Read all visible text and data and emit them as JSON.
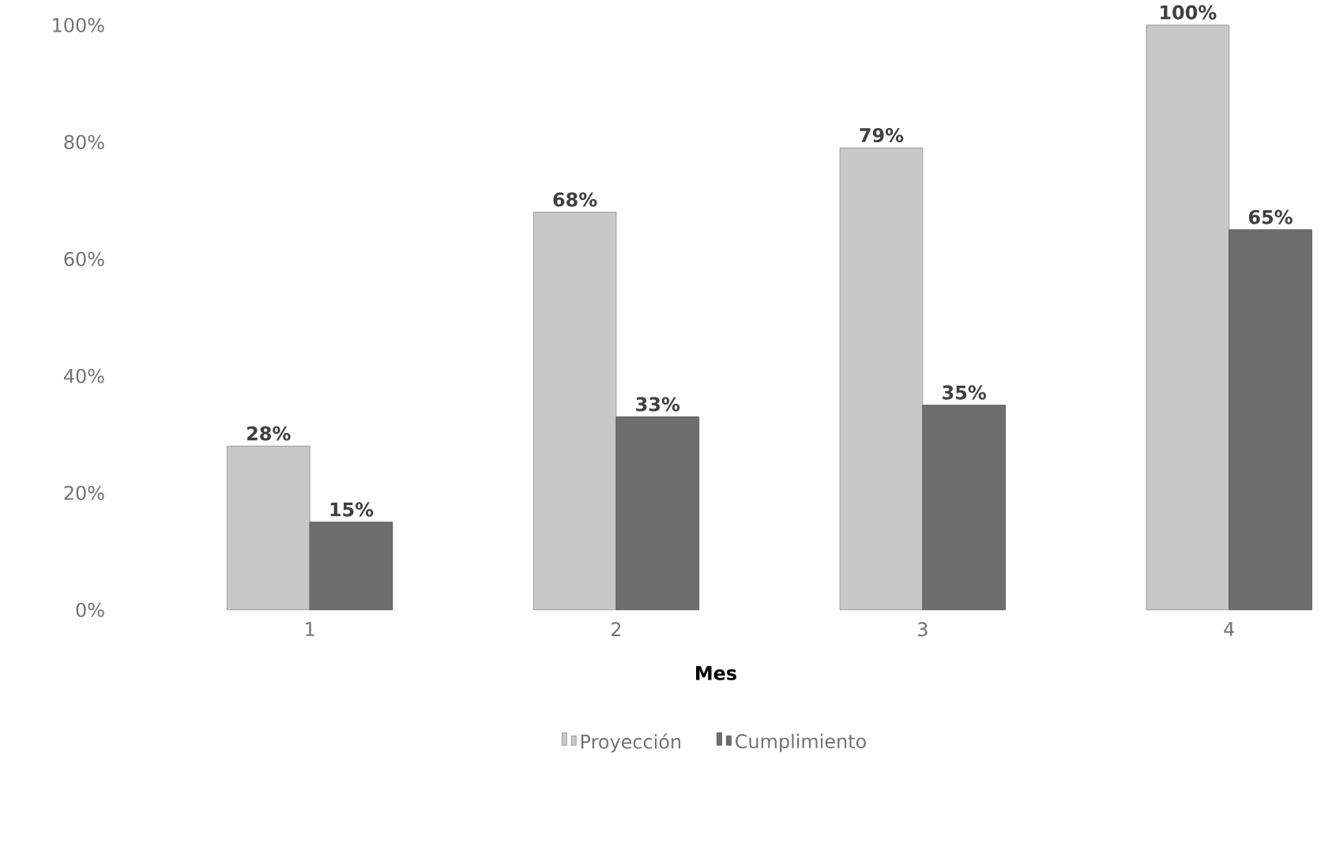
{
  "chart_data": {
    "type": "bar",
    "xlabel": "Mes",
    "categories": [
      "1",
      "2",
      "3",
      "4"
    ],
    "series": [
      {
        "name": "Proyección",
        "color": "#c8c8c8",
        "values": [
          28,
          68,
          79,
          100
        ],
        "value_labels": [
          "28%",
          "68%",
          "79%",
          "100%"
        ]
      },
      {
        "name": "Cumplimiento",
        "color": "#6e6e6e",
        "values": [
          15,
          33,
          35,
          65
        ],
        "value_labels": [
          "15%",
          "33%",
          "35%",
          "65%"
        ]
      }
    ],
    "ylim": [
      0,
      100
    ],
    "yticks": [
      {
        "value": 0,
        "label": "0%"
      },
      {
        "value": 20,
        "label": "20%"
      },
      {
        "value": 40,
        "label": "40%"
      },
      {
        "value": 60,
        "label": "60%"
      },
      {
        "value": 80,
        "label": "80%"
      },
      {
        "value": 100,
        "label": "100%"
      }
    ],
    "grid": false,
    "legend": "bottom"
  }
}
